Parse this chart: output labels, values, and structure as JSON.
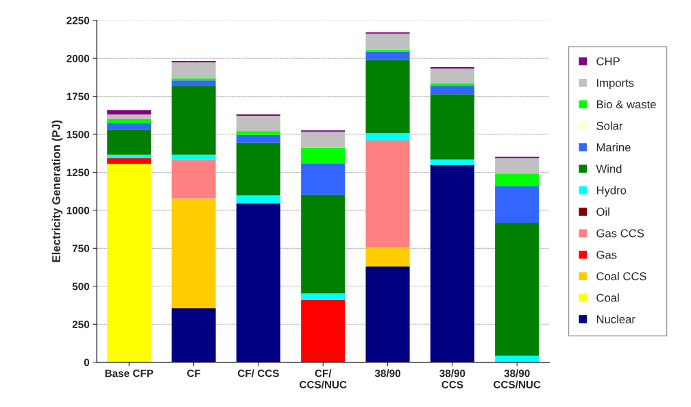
{
  "chart_data": {
    "type": "bar",
    "stacked": true,
    "ylabel": "Electricity Generation (PJ)",
    "categories": [
      "Base CFP",
      "CF",
      "CF/ CCS",
      "CF/\nCCS/NUC",
      "38/90",
      "38/90\nCCS",
      "38/90\nCCS/NUC"
    ],
    "series": [
      {
        "name": "Nuclear",
        "color": "#000080",
        "values": [
          0,
          355,
          1046,
          0,
          631,
          1297,
          0
        ]
      },
      {
        "name": "Coal",
        "color": "#ffff00",
        "values": [
          1306,
          0,
          0,
          0,
          0,
          0,
          0
        ]
      },
      {
        "name": "Coal CCS",
        "color": "#ffcc00",
        "values": [
          0,
          723,
          0,
          0,
          124,
          0,
          0
        ]
      },
      {
        "name": "Gas",
        "color": "#ff0000",
        "values": [
          37,
          0,
          0,
          410,
          0,
          0,
          0
        ]
      },
      {
        "name": "Gas CCS",
        "color": "#ff8080",
        "values": [
          0,
          253,
          0,
          0,
          704,
          0,
          0
        ]
      },
      {
        "name": "Oil",
        "color": "#800000",
        "values": [
          0,
          0,
          0,
          0,
          0,
          0,
          0
        ]
      },
      {
        "name": "Hydro",
        "color": "#00ffff",
        "values": [
          23,
          35,
          52,
          43,
          49,
          37,
          44
        ]
      },
      {
        "name": "Wind",
        "color": "#008000",
        "values": [
          164,
          453,
          346,
          649,
          481,
          430,
          874
        ]
      },
      {
        "name": "Marine",
        "color": "#3366ff",
        "values": [
          42,
          36,
          53,
          204,
          55,
          55,
          239
        ]
      },
      {
        "name": "Solar",
        "color": "#ffffcc",
        "values": [
          0,
          0,
          0,
          0,
          0,
          0,
          0
        ]
      },
      {
        "name": "Bio & waste",
        "color": "#00ff00",
        "values": [
          27,
          14,
          24,
          106,
          12,
          15,
          85
        ]
      },
      {
        "name": "Imports",
        "color": "#c0c0c0",
        "values": [
          32,
          105,
          101,
          105,
          107,
          99,
          101
        ]
      },
      {
        "name": "CHP",
        "color": "#800080",
        "values": [
          28,
          9,
          9,
          9,
          8,
          9,
          9
        ]
      }
    ],
    "ylim": [
      0,
      2250
    ],
    "yticks": [
      0,
      250,
      500,
      750,
      1000,
      1250,
      1500,
      1750,
      2000,
      2250
    ],
    "grid": "y",
    "legend": "right"
  }
}
